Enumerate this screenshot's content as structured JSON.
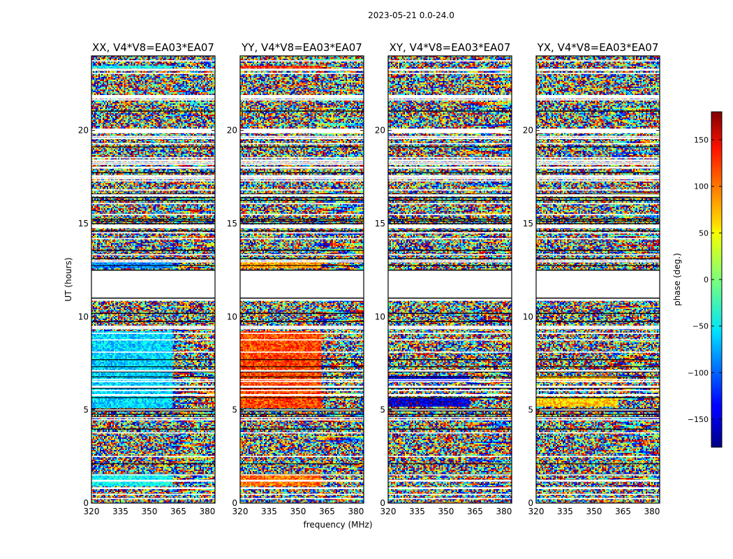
{
  "chart_data": {
    "type": "heatmap",
    "title": "2023-05-21 0.0-24.0",
    "xlabel": "frequency (MHz)",
    "ylabel": "UT (hours)",
    "xlim": [
      320,
      384
    ],
    "ylim": [
      0,
      24
    ],
    "xticks": [
      "320",
      "335",
      "350",
      "365",
      "380"
    ],
    "yticks": [
      "0",
      "5",
      "10",
      "15",
      "20"
    ],
    "panels": [
      {
        "title": "XX, V4*V8=EA03*EA07",
        "polarization": "XX"
      },
      {
        "title": "YY, V4*V8=EA03*EA07",
        "polarization": "YY"
      },
      {
        "title": "XY, V4*V8=EA03*EA07",
        "polarization": "XY"
      },
      {
        "title": "YX, V4*V8=EA03*EA07",
        "polarization": "YX"
      }
    ],
    "colorbar": {
      "label": "phase (deg.)",
      "range": [
        -180,
        180
      ],
      "ticks": [
        "150",
        "100",
        "50",
        "0",
        "−50",
        "−100",
        "−150"
      ],
      "colormap": "jet"
    },
    "flagged_ut_intervals_hours": [
      [
        11.0,
        12.5
      ],
      [
        23.2,
        23.3
      ],
      [
        21.7,
        21.9
      ],
      [
        19.85,
        20.1
      ],
      [
        17.45,
        17.6
      ],
      [
        17.95,
        18.05
      ],
      [
        14.75,
        14.95
      ],
      [
        5.75,
        5.85
      ],
      [
        6.2,
        6.3
      ],
      [
        1.15,
        1.25
      ],
      [
        0.75,
        0.85
      ]
    ],
    "coherent_phase_bands": [
      {
        "panel": "XX",
        "ut_range": [
          5.1,
          9.2
        ],
        "phase_deg": -60
      },
      {
        "panel": "XX",
        "ut_range": [
          12.6,
          13.0
        ],
        "phase_deg": -90
      },
      {
        "panel": "XX",
        "ut_range": [
          23.3,
          23.5
        ],
        "phase_deg": -40
      },
      {
        "panel": "XX",
        "ut_range": [
          0.9,
          1.6
        ],
        "phase_deg": -45
      },
      {
        "panel": "YY",
        "ut_range": [
          5.1,
          9.2
        ],
        "phase_deg": 110
      },
      {
        "panel": "YY",
        "ut_range": [
          12.6,
          13.0
        ],
        "phase_deg": 80
      },
      {
        "panel": "YY",
        "ut_range": [
          23.3,
          23.5
        ],
        "phase_deg": 120
      },
      {
        "panel": "YY",
        "ut_range": [
          0.9,
          1.6
        ],
        "phase_deg": 95
      },
      {
        "panel": "XY",
        "ut_range": [
          5.2,
          5.6
        ],
        "phase_deg": -150
      },
      {
        "panel": "XY",
        "ut_range": [
          6.5,
          6.8
        ],
        "phase_deg": -140
      },
      {
        "panel": "YX",
        "ut_range": [
          5.2,
          5.6
        ],
        "phase_deg": 60
      },
      {
        "panel": "YX",
        "ut_range": [
          6.5,
          6.8
        ],
        "phase_deg": 70
      }
    ]
  }
}
